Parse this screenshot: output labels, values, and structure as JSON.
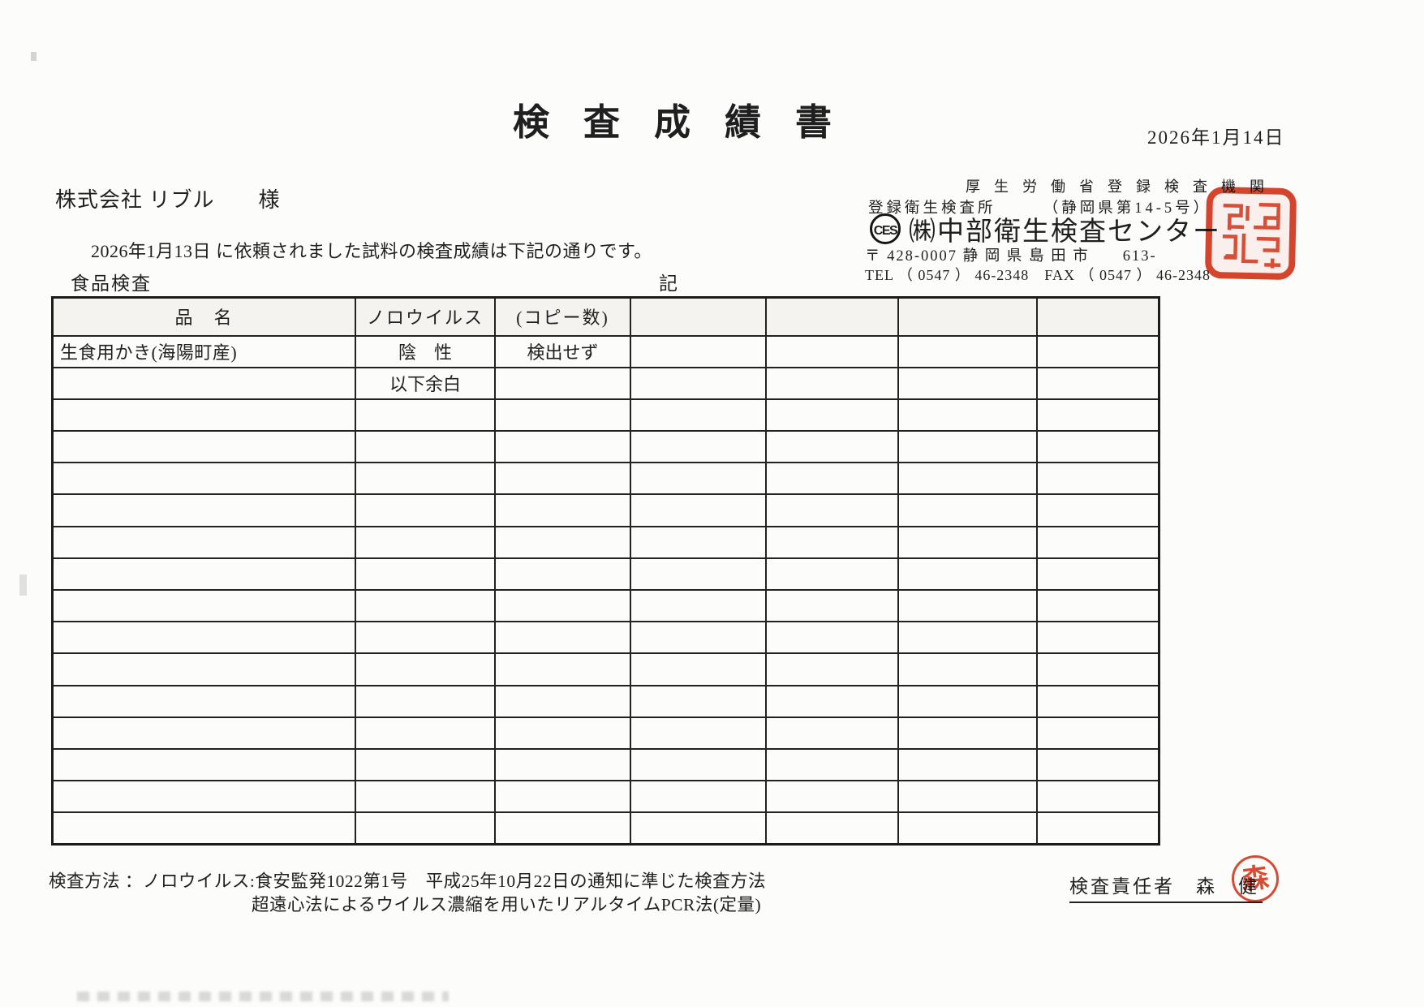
{
  "doc": {
    "title": "検査成績書",
    "issue_date": "2026年1月14日",
    "addressee": "株式会社 リブル　　様",
    "request_line": "2026年1月13日 に依頼されました試料の検査成績は下記の通りです。",
    "section_label": "食品検査",
    "record_mark": "記"
  },
  "agency": {
    "line1": "厚生労働省登録検査機関",
    "line2": "登録衛生検査所　　　（静岡県第14-5号）",
    "logo_text": "CES",
    "name": "㈱中部衛生検査センター",
    "address": "〒 428-0007 静 岡 県 島 田 市　　613-",
    "tel_fax": "TEL （ 0547 ） 46-2348　FAX （ 0547 ） 46-2348"
  },
  "table": {
    "headers": [
      "品　名",
      "ノロウイルス",
      "(コピー数)",
      "",
      "",
      "",
      ""
    ],
    "rows": [
      [
        "生食用かき(海陽町産)",
        "陰　性",
        "検出せず",
        "",
        "",
        "",
        ""
      ],
      [
        "",
        "以下余白",
        "",
        "",
        "",
        "",
        ""
      ],
      [
        "",
        "",
        "",
        "",
        "",
        "",
        ""
      ],
      [
        "",
        "",
        "",
        "",
        "",
        "",
        ""
      ],
      [
        "",
        "",
        "",
        "",
        "",
        "",
        ""
      ],
      [
        "",
        "",
        "",
        "",
        "",
        "",
        ""
      ],
      [
        "",
        "",
        "",
        "",
        "",
        "",
        ""
      ],
      [
        "",
        "",
        "",
        "",
        "",
        "",
        ""
      ],
      [
        "",
        "",
        "",
        "",
        "",
        "",
        ""
      ],
      [
        "",
        "",
        "",
        "",
        "",
        "",
        ""
      ],
      [
        "",
        "",
        "",
        "",
        "",
        "",
        ""
      ],
      [
        "",
        "",
        "",
        "",
        "",
        "",
        ""
      ],
      [
        "",
        "",
        "",
        "",
        "",
        "",
        ""
      ],
      [
        "",
        "",
        "",
        "",
        "",
        "",
        ""
      ],
      [
        "",
        "",
        "",
        "",
        "",
        "",
        ""
      ],
      [
        "",
        "",
        "",
        "",
        "",
        "",
        ""
      ]
    ]
  },
  "footer": {
    "method_line1": "検査方法 ：ノロウイルス:食安監発1022第1号　平成25年10月22日の通知に準じた検査方法",
    "method_line2": "超遠心法によるウイルス濃縮を用いたリアルタイムPCR法(定量)",
    "inspector_line": "検査責任者　森　健"
  },
  "stamps": {
    "square_seal_meaning": "company-seal",
    "round_seal_text": "森",
    "seal_color": "#d5381d"
  },
  "colors": {
    "ink": "#1f1f1f",
    "paper": "#fcfcfb",
    "seal_red": "#d5381d",
    "table_header_bg": "#f4f3f0"
  }
}
